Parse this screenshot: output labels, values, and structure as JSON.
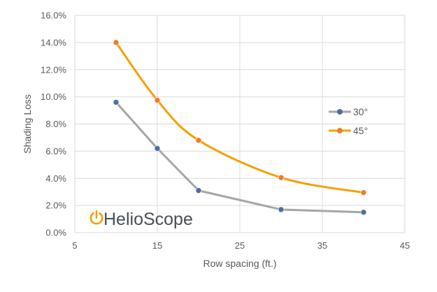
{
  "chart_data": {
    "type": "line",
    "title": "",
    "xlabel": "Row spacing (ft.)",
    "ylabel": "Shading Loss",
    "xlim": [
      5,
      45
    ],
    "ylim": [
      0,
      16
    ],
    "x_ticks": [
      5,
      15,
      25,
      35,
      45
    ],
    "y_ticks": [
      0,
      2,
      4,
      6,
      8,
      10,
      12,
      14,
      16
    ],
    "y_tick_format": "percent_1dp",
    "grid": true,
    "legend_position": "right",
    "series": [
      {
        "name": "30°",
        "color": "#a5a5a5",
        "marker_color": "#4a6fa5",
        "smooth": false,
        "points": [
          {
            "x": 10,
            "y": 9.6
          },
          {
            "x": 15,
            "y": 6.2
          },
          {
            "x": 20,
            "y": 3.1
          },
          {
            "x": 30,
            "y": 1.7
          },
          {
            "x": 40,
            "y": 1.5
          }
        ]
      },
      {
        "name": "45°",
        "color": "#f5a000",
        "marker_color": "#ed7d31",
        "smooth": true,
        "points": [
          {
            "x": 10,
            "y": 14.0
          },
          {
            "x": 15,
            "y": 9.75
          },
          {
            "x": 20,
            "y": 6.8
          },
          {
            "x": 30,
            "y": 4.05
          },
          {
            "x": 40,
            "y": 2.95
          }
        ]
      }
    ]
  },
  "logo": {
    "text": "HelioScope",
    "icon": "power-icon",
    "color": "#454f57",
    "icon_color": "#f5a000"
  }
}
